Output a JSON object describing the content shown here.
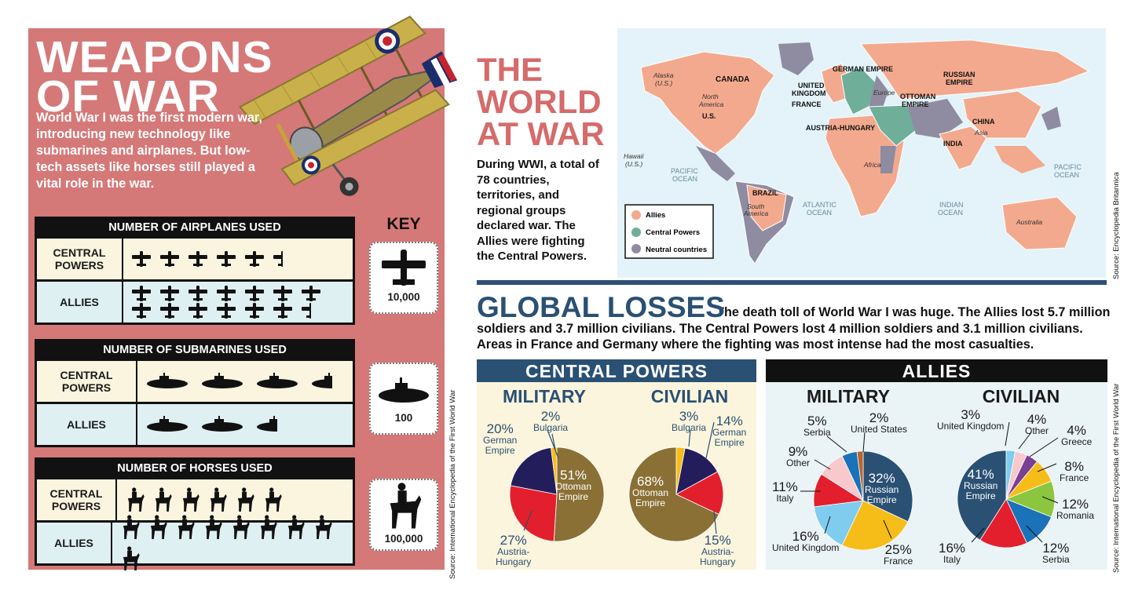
{
  "weapons": {
    "title_line1": "WEAPONS",
    "title_line2": "OF WAR",
    "intro": "World War I was the first modern war, introducing new technology like submarines and airplanes. But low-tech assets like horses still played a vital role in the war.",
    "key_title": "KEY",
    "source": "Source: International Encyclopedia of the First World War",
    "airplanes": {
      "title": "NUMBER OF AIRPLANES USED",
      "central_label_1": "CENTRAL",
      "central_label_2": "POWERS",
      "allies_label": "ALLIES",
      "central_icons": 5.5,
      "allies_icons": 13.5,
      "key_value": "10,000",
      "key_icon": "airplane-icon"
    },
    "submarines": {
      "title": "NUMBER OF SUBMARINES USED",
      "central_label_1": "CENTRAL",
      "central_label_2": "POWERS",
      "allies_label": "ALLIES",
      "central_icons": 3.5,
      "allies_icons": 2.5,
      "key_value": "100",
      "key_icon": "submarine-icon"
    },
    "horses": {
      "title": "NUMBER OF HORSES USED",
      "central_label_1": "CENTRAL",
      "central_label_2": "POWERS",
      "allies_label": "ALLIES",
      "central_icons": 6,
      "allies_icons": 9,
      "key_value": "100,000",
      "key_icon": "horse-rider-icon"
    }
  },
  "world": {
    "title_line1": "THE",
    "title_line2": "WORLD",
    "title_line3": "AT WAR",
    "intro": "During WWI, a total of 78 countries, territories, and regional groups declared war. The Allies were fighting the Central Powers.",
    "source": "Source: Encyclopedia Britannica",
    "colors": {
      "allies": "#f3a98d",
      "central": "#6fae98",
      "neutral": "#8f8ba0",
      "ocean": "#e3f3f9"
    },
    "legend": {
      "allies": "Allies",
      "central": "Central Powers",
      "neutral": "Neutral countries"
    },
    "labels": {
      "alaska": "Alaska",
      "alaska_us": "(U.S.)",
      "canada": "CANADA",
      "north_america_1": "North",
      "north_america_2": "America",
      "us": "U.S.",
      "hawaii": "Hawaii",
      "hawaii_us": "(U.S.)",
      "pacific_1": "PACIFIC",
      "pacific_2": "OCEAN",
      "german_empire": "GERMAN EMPIRE",
      "uk_1": "UNITED",
      "uk_2": "KINGDOM",
      "france": "FRANCE",
      "europe": "Europe",
      "austria": "AUSTRIA-HUNGARY",
      "russia_1": "RUSSIAN",
      "russia_2": "EMPIRE",
      "ottoman_1": "OTTOMAN",
      "ottoman_2": "EMPIRE",
      "china": "CHINA",
      "asia": "Asia",
      "india": "INDIA",
      "africa": "Africa",
      "brazil": "BRAZIL",
      "south_america_1": "South",
      "south_america_2": "America",
      "atlantic_1": "ATLANTIC",
      "atlantic_2": "OCEAN",
      "indian_1": "INDIAN",
      "indian_2": "OCEAN",
      "pacific_e_1": "PACIFIC",
      "pacific_e_2": "OCEAN",
      "australia": "Australia"
    }
  },
  "losses": {
    "title": "GLOBAL LOSSES",
    "text": "The death toll of World War I was huge. The Allies lost 5.7 million soldiers and 3.7 million civilians. The Central Powers lost 4 million soldiers and 3.1 million civilians. Areas in France and Germany where the fighting was most intense had the most casualties.",
    "source": "Source: International Encyclopedia of the First World War",
    "central_powers": {
      "title": "CENTRAL POWERS",
      "bar_color": "#2a5073",
      "military": {
        "title": "MILITARY",
        "slices": [
          {
            "name": "Ottoman Empire",
            "pct": "51%",
            "value": 51,
            "color": "#8a7035"
          },
          {
            "name": "Austria-Hungary",
            "pct": "27%",
            "value": 27,
            "color": "#e31f2d"
          },
          {
            "name": "German Empire",
            "pct": "20%",
            "value": 20,
            "color": "#241d5c"
          },
          {
            "name": "Bulgaria",
            "pct": "2%",
            "value": 2,
            "color": "#f6bd19"
          }
        ]
      },
      "civilian": {
        "title": "CIVILIAN",
        "slices": [
          {
            "name": "Bulgaria",
            "pct": "3%",
            "value": 3,
            "color": "#f6bd19"
          },
          {
            "name": "German Empire",
            "pct": "14%",
            "value": 14,
            "color": "#241d5c"
          },
          {
            "name": "Austria-Hungary",
            "pct": "15%",
            "value": 15,
            "color": "#e31f2d"
          },
          {
            "name": "Ottoman Empire",
            "pct": "68%",
            "value": 68,
            "color": "#8a7035"
          }
        ]
      }
    },
    "allies": {
      "title": "ALLIES",
      "bar_color": "#111111",
      "military": {
        "title": "MILITARY",
        "slices": [
          {
            "name": "Russian Empire",
            "pct": "32%",
            "value": 32,
            "color": "#2a5073"
          },
          {
            "name": "France",
            "pct": "25%",
            "value": 25,
            "color": "#f6bd19"
          },
          {
            "name": "United Kingdom",
            "pct": "16%",
            "value": 16,
            "color": "#7fccef"
          },
          {
            "name": "Italy",
            "pct": "11%",
            "value": 11,
            "color": "#e31f2d"
          },
          {
            "name": "Other",
            "pct": "9%",
            "value": 9,
            "color": "#f7c9cc"
          },
          {
            "name": "Serbia",
            "pct": "5%",
            "value": 5,
            "color": "#1a72b8"
          },
          {
            "name": "United States",
            "pct": "2%",
            "value": 2,
            "color": "#b8652b"
          }
        ]
      },
      "civilian": {
        "title": "CIVILIAN",
        "slices": [
          {
            "name": "United Kingdom",
            "pct": "3%",
            "value": 3,
            "color": "#7fccef"
          },
          {
            "name": "Other",
            "pct": "4%",
            "value": 4,
            "color": "#f7c9cc"
          },
          {
            "name": "Greece",
            "pct": "4%",
            "value": 4,
            "color": "#7b3f94"
          },
          {
            "name": "France",
            "pct": "8%",
            "value": 8,
            "color": "#f6bd19"
          },
          {
            "name": "Romania",
            "pct": "12%",
            "value": 12,
            "color": "#8cc63f"
          },
          {
            "name": "Serbia",
            "pct": "12%",
            "value": 12,
            "color": "#1a72b8"
          },
          {
            "name": "Italy",
            "pct": "16%",
            "value": 16,
            "color": "#e31f2d"
          },
          {
            "name": "Russian Empire",
            "pct": "41%",
            "value": 41,
            "color": "#2a5073"
          }
        ]
      }
    }
  }
}
